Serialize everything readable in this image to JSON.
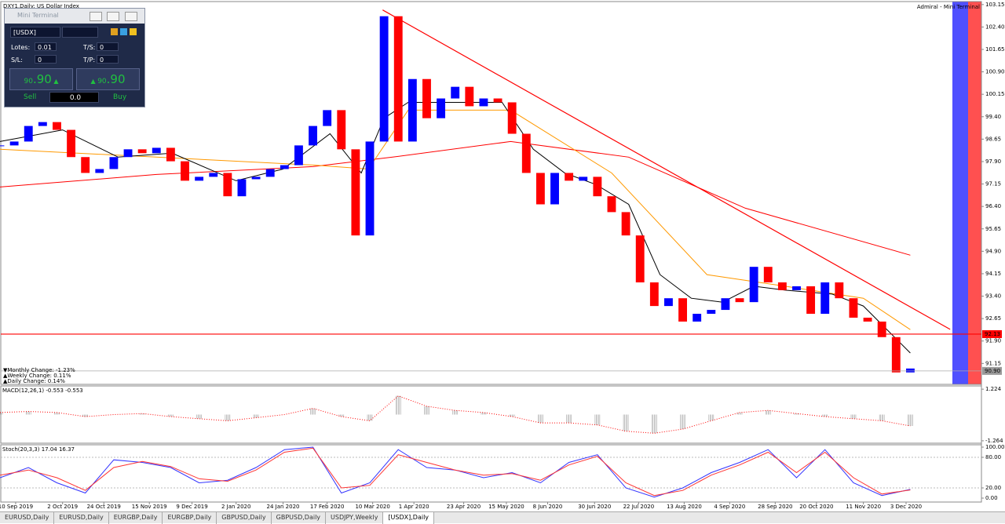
{
  "chart_header": "DXY1,Daily:  US Dollar Index",
  "broker": "Admiral - Mini Terminal",
  "mini_terminal": {
    "title": "Mini Terminal",
    "symbol": "[USDX]",
    "lots_label": "Lotes:",
    "lots": "0.01",
    "ts_label": "T/S:",
    "ts": "0",
    "sl_label": "S/L:",
    "sl": "0",
    "tp_label": "T/P:",
    "tp": "0",
    "sell_price": {
      "small": "90",
      "big": ".90"
    },
    "buy_price": {
      "small": "90",
      "big": ".90"
    },
    "sell": "Sell",
    "buy": "Buy",
    "volume": "0.0"
  },
  "tabs": [
    "EURUSD,Daily",
    "EURUSD,Daily",
    "EURGBP,Daily",
    "EURGBP,Daily",
    "GBPUSD,Daily",
    "GBPUSD,Daily",
    "USDJPY,Weekly",
    "[USDX],Daily"
  ],
  "active_tab": "[USDX],Daily",
  "chart_data": [
    {
      "type": "candlestick",
      "x": [
        0,
        1,
        2,
        3,
        4,
        5,
        6,
        7,
        8,
        9,
        10,
        11,
        12,
        13,
        14,
        15,
        16,
        17,
        18,
        19,
        20,
        21,
        22,
        23,
        24,
        25,
        26,
        27,
        28,
        29,
        30,
        31,
        32,
        33,
        34,
        35,
        36,
        37,
        38,
        39,
        40,
        41,
        42,
        43,
        44,
        45,
        46,
        47,
        48,
        49,
        50,
        51,
        52,
        53,
        54,
        55,
        56,
        57,
        58,
        59,
        60,
        61,
        62,
        63,
        64
      ],
      "close": [
        98.44,
        98.57,
        99.09,
        99.22,
        98.96,
        98.05,
        97.52,
        97.65,
        98.05,
        98.31,
        98.18,
        98.36,
        97.91,
        97.26,
        97.39,
        97.52,
        96.74,
        97.31,
        97.39,
        97.65,
        97.78,
        98.44,
        99.09,
        99.62,
        98.31,
        95.43,
        98.57,
        102.76,
        98.57,
        100.66,
        99.35,
        100.01,
        100.4,
        99.75,
        100.01,
        99.88,
        98.83,
        97.52,
        96.47,
        97.52,
        97.26,
        97.39,
        96.74,
        96.21,
        95.43,
        93.86,
        93.07,
        93.33,
        92.55,
        92.81,
        92.94,
        93.33,
        93.2,
        94.38,
        93.86,
        93.6,
        93.73,
        92.81,
        93.86,
        93.33,
        92.68,
        92.55,
        92.03,
        90.85,
        90.98
      ],
      "up_color": "#0000ff",
      "down_color": "#ff0000",
      "moving_averages": [
        {
          "color": "#ff0000",
          "x": [
            0,
            11,
            22,
            27.6,
            35.9,
            44.2,
            52.4,
            64
          ],
          "y": [
            97.05,
            97.47,
            97.73,
            98.05,
            98.57,
            98.05,
            96.34,
            94.77
          ]
        },
        {
          "color": "#ff9900",
          "x": [
            0,
            11,
            22.1,
            25.9,
            28.7,
            35.9,
            43,
            49.7,
            55.2,
            60.7,
            64
          ],
          "y": [
            98.31,
            98.05,
            97.78,
            97.65,
            99.62,
            99.62,
            97.52,
            94.12,
            93.73,
            93.33,
            92.28
          ]
        },
        {
          "color": "#000000",
          "x": [
            0,
            4.4,
            8.3,
            12.1,
            16.6,
            19.9,
            23.2,
            25.4,
            27,
            28.7,
            33.1,
            35.3,
            37.5,
            39.7,
            41.9,
            44.2,
            46.4,
            48.6,
            50.8,
            53,
            55.2,
            58.5,
            60.7,
            64
          ],
          "y": [
            98.57,
            98.96,
            98.05,
            98.18,
            97.26,
            97.65,
            98.83,
            97.52,
            99.35,
            99.88,
            99.88,
            99.88,
            98.31,
            97.52,
            97.13,
            96.47,
            94.12,
            93.33,
            93.2,
            93.73,
            93.6,
            93.47,
            93.07,
            91.5
          ]
        }
      ],
      "trendline": {
        "color": "#ff0000",
        "x": [
          26.9,
          66.8
        ],
        "y": [
          102.97,
          92.29
        ]
      },
      "hline": {
        "value": 92.13,
        "label": "92.13",
        "color": "#ff0000"
      },
      "last": {
        "value": 90.9,
        "label": "90.90"
      },
      "changes": [
        {
          "text": "▼Monthly Change: -1.23%",
          "color": "#ff3030"
        },
        {
          "text": "▲Weekly Change: 0.11%",
          "color": "#1a9a1a"
        },
        {
          "text": "▲Daily Change: 0.14%",
          "color": "#1a9a1a"
        }
      ],
      "ylim": [
        90.45,
        103.25
      ],
      "yticks": [
        103.15,
        {
          "value": 102.4,
          "label": "102.40"
        },
        101.65,
        {
          "value": 100.9,
          "label": "100.90"
        },
        100.15,
        {
          "value": 99.4,
          "label": "99.40"
        },
        98.65,
        {
          "value": 97.9,
          "label": "97.90"
        },
        97.15,
        {
          "value": 96.4,
          "label": "96.40"
        },
        95.65,
        {
          "value": 94.9,
          "label": "94.90"
        },
        94.15,
        {
          "value": 93.4,
          "label": "93.40"
        },
        92.65,
        {
          "value": 91.9,
          "label": "91.90"
        },
        91.15
      ],
      "xlim": [
        0,
        69
      ],
      "xticks": [
        {
          "value": 1.1,
          "label": "10 Sep 2019"
        },
        {
          "value": 4.4,
          "label": "2 Oct 2019"
        },
        {
          "value": 7.3,
          "label": "24 Oct 2019"
        },
        {
          "value": 10.5,
          "label": "15 Nov 2019"
        },
        {
          "value": 13.5,
          "label": "9 Dec 2019"
        },
        {
          "value": 16.6,
          "label": "2 Jan 2020"
        },
        {
          "value": 19.9,
          "label": "24 Jan 2020"
        },
        {
          "value": 23,
          "label": "17 Feb 2020"
        },
        {
          "value": 26.2,
          "label": "10 Mar 2020"
        },
        {
          "value": 29.1,
          "label": "1 Apr 2020"
        },
        {
          "value": 32.6,
          "label": "23 Apr 2020"
        },
        {
          "value": 35.6,
          "label": "15 May 2020"
        },
        {
          "value": 38.5,
          "label": "8 Jun 2020"
        },
        {
          "value": 41.8,
          "label": "30 Jun 2020"
        },
        {
          "value": 44.9,
          "label": "22 Jul 2020"
        },
        {
          "value": 48.1,
          "label": "13 Aug 2020"
        },
        {
          "value": 51.3,
          "label": "4 Sep 2020"
        },
        {
          "value": 54.5,
          "label": "28 Sep 2020"
        },
        {
          "value": 57.4,
          "label": "20 Oct 2020"
        },
        {
          "value": 60.7,
          "label": "11 Nov 2020"
        },
        {
          "value": 63.7,
          "label": "3 Dec 2020"
        }
      ]
    },
    {
      "type": "macd",
      "title": "MACD(12,26,1) -0.553 -0.553",
      "color": "#a0a0a0",
      "signal_color": "#ff0000",
      "x": [
        0,
        2,
        4,
        6,
        8,
        10,
        12,
        14,
        16,
        18,
        20,
        22,
        24,
        26,
        28,
        30,
        32,
        34,
        36,
        38,
        40,
        42,
        44,
        46,
        48,
        50,
        52,
        54,
        56,
        58,
        60,
        62,
        64
      ],
      "values": [
        0.1,
        0.15,
        0.1,
        -0.1,
        0,
        0.05,
        -0.1,
        -0.2,
        -0.3,
        -0.15,
        0,
        0.3,
        -0.1,
        -0.3,
        0.9,
        0.4,
        0.2,
        0.1,
        -0.1,
        -0.4,
        -0.4,
        -0.5,
        -0.8,
        -0.9,
        -0.7,
        -0.3,
        0.1,
        0.2,
        0.05,
        -0.1,
        -0.2,
        -0.3,
        -0.55
      ],
      "ylim": [
        -1.38,
        1.38
      ],
      "yticks": [
        1.224,
        -1.264
      ]
    },
    {
      "type": "stochastic",
      "title": "Stoch(20,3,3) 17.04 16.37",
      "x": [
        0,
        2,
        4,
        6,
        8,
        10,
        12,
        14,
        16,
        18,
        20,
        22,
        24,
        26,
        28,
        30,
        32,
        34,
        36,
        38,
        40,
        42,
        44,
        46,
        48,
        50,
        52,
        54,
        56,
        58,
        60,
        62,
        64
      ],
      "series": [
        {
          "color": "#3333ff",
          "values": [
            40,
            60,
            30,
            10,
            75,
            70,
            60,
            30,
            35,
            60,
            95,
            100,
            10,
            30,
            95,
            60,
            55,
            40,
            50,
            30,
            70,
            85,
            20,
            2,
            20,
            50,
            70,
            95,
            40,
            95,
            30,
            5,
            17
          ]
        },
        {
          "color": "#ff3333",
          "values": [
            45,
            55,
            40,
            15,
            60,
            72,
            62,
            38,
            33,
            55,
            90,
            98,
            20,
            25,
            85,
            70,
            55,
            45,
            48,
            35,
            65,
            82,
            30,
            5,
            15,
            45,
            65,
            90,
            50,
            90,
            40,
            8,
            16
          ]
        }
      ],
      "levels": [
        80,
        20
      ],
      "ylim": [
        -7.7,
        104.6
      ],
      "yticks": [
        {
          "value": 100,
          "label": "100.00"
        },
        {
          "value": 80,
          "label": "80.00"
        },
        {
          "value": 20,
          "label": "20.00"
        },
        {
          "value": 0,
          "label": "0.00"
        }
      ]
    }
  ]
}
